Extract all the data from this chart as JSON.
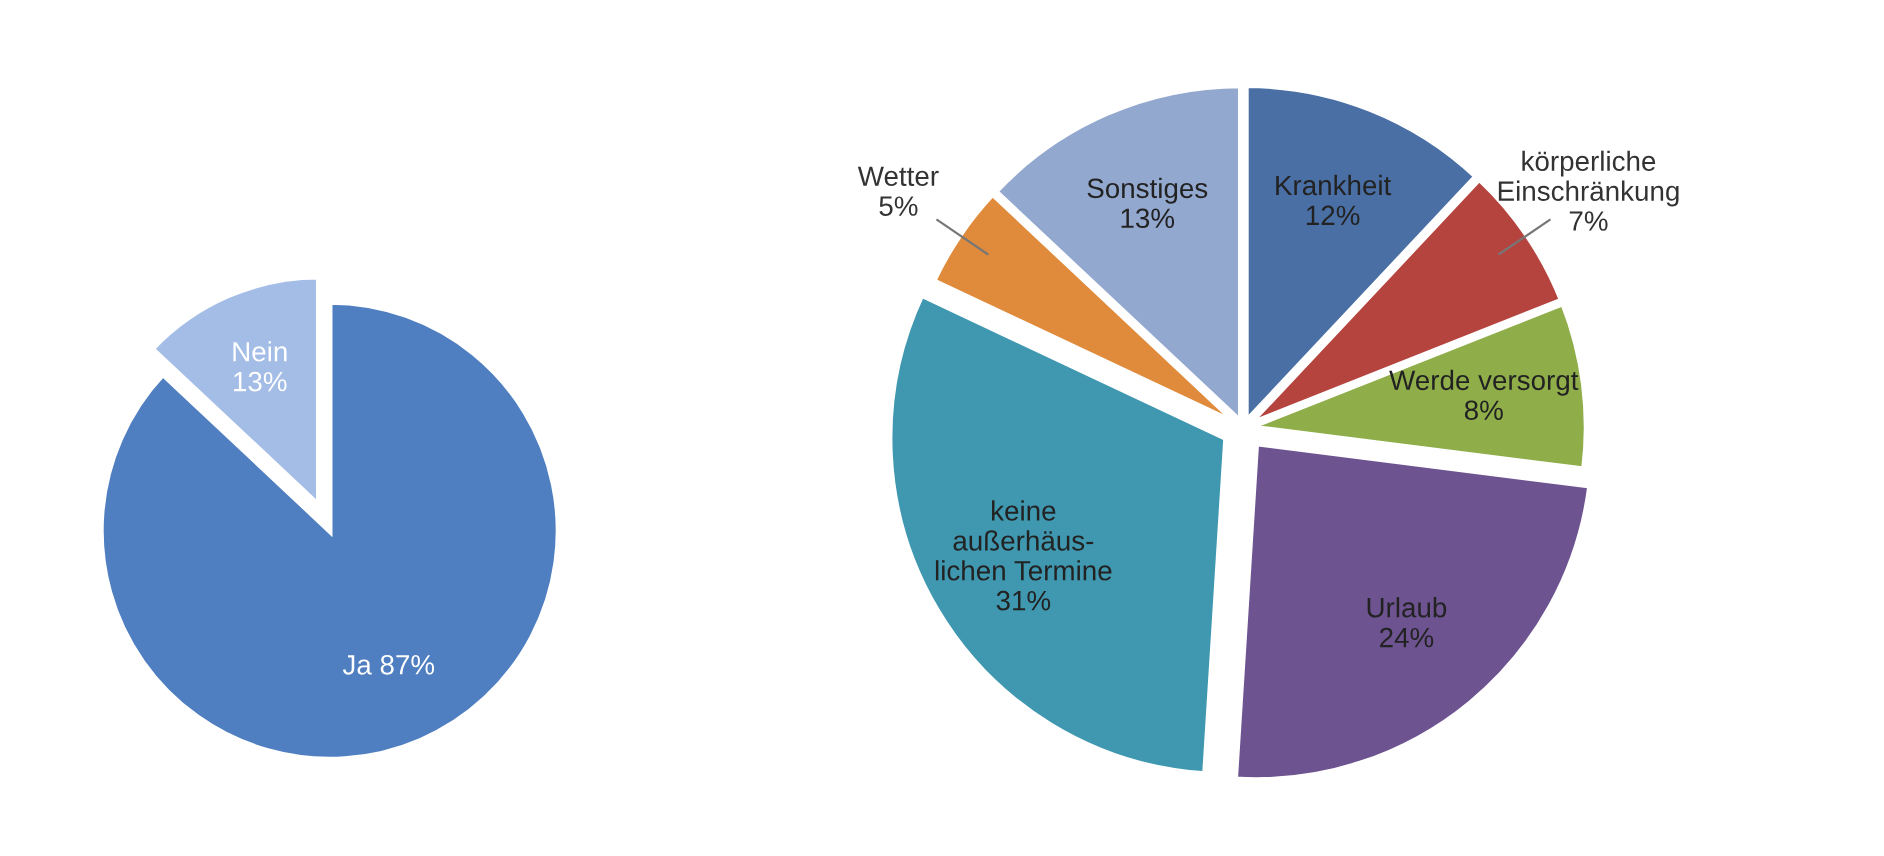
{
  "chart_data": [
    {
      "type": "pie",
      "categories": [
        "Ja",
        "Nein"
      ],
      "values": [
        87,
        13
      ],
      "value_labels": [
        "87%",
        "13%"
      ],
      "colors": [
        "#4f7fc0",
        "#a3bde6"
      ]
    },
    {
      "type": "pie",
      "categories": [
        "Krankheit",
        "körperliche\nEinschränkung",
        "Werde versorgt",
        "Urlaub",
        "keine\naußerhäus-\nlichen Termine",
        "Wetter",
        "Sonstiges"
      ],
      "values": [
        12,
        7,
        8,
        24,
        31,
        5,
        13
      ],
      "value_labels": [
        "12%",
        "7%",
        "8%",
        "24%",
        "31%",
        "5%",
        "13%"
      ],
      "colors": [
        "#4a6fa5",
        "#b5443f",
        "#8fae4a",
        "#6e5391",
        "#3f98b0",
        "#e08a3c",
        "#93a8cf"
      ]
    }
  ]
}
